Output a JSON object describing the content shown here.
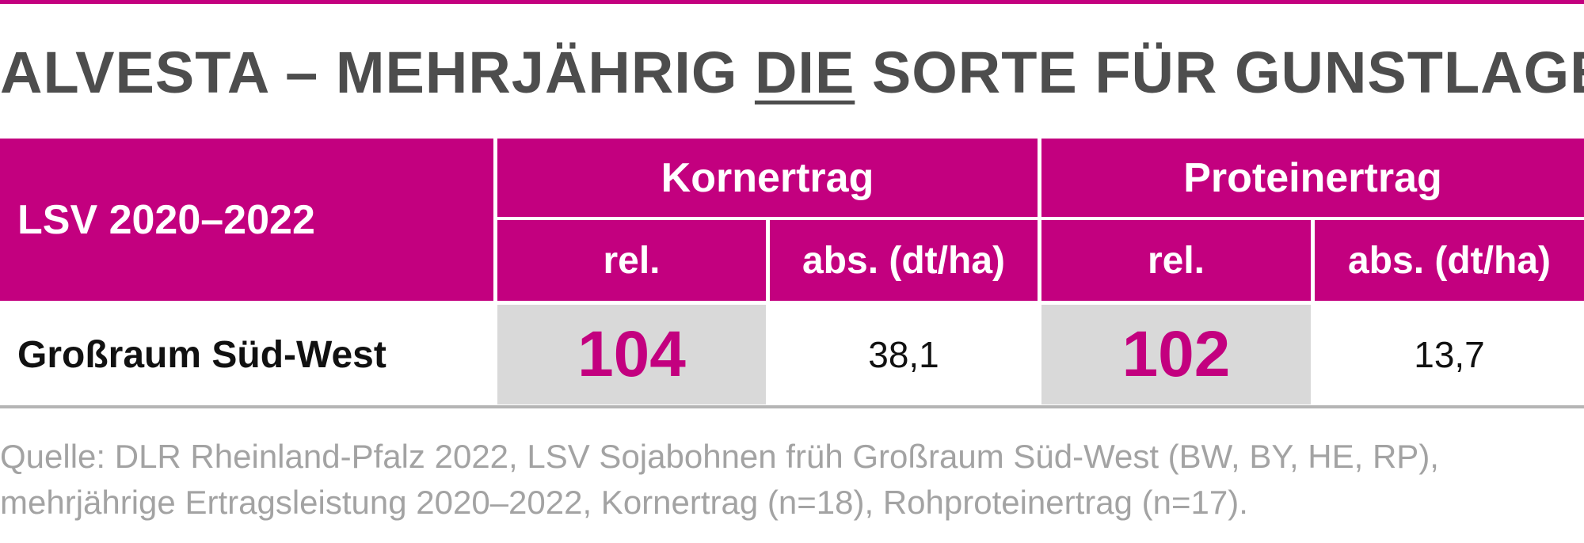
{
  "title": {
    "before": "ALVESTA – MEHRJÄHRIG ",
    "emphasis": "DIE",
    "after": " SORTE FÜR GUNSTLAGEN"
  },
  "table": {
    "row_header": "LSV 2020–2022",
    "groups": [
      {
        "label": "Kornertrag",
        "sub": [
          "rel.",
          "abs. (dt/ha)"
        ]
      },
      {
        "label": "Proteinertrag",
        "sub": [
          "rel.",
          "abs. (dt/ha)"
        ]
      }
    ],
    "rows": [
      {
        "label": "Großraum Süd-West",
        "kornertrag_rel": "104",
        "kornertrag_abs": "38,1",
        "proteinertrag_rel": "102",
        "proteinertrag_abs": "13,7"
      }
    ]
  },
  "source": {
    "line1": "Quelle: DLR Rheinland-Pfalz 2022, LSV Sojabohnen früh Großraum Süd-West (BW, BY, HE, RP),",
    "line2": "mehrjährige Ertragsleistung 2020–2022, Kornertrag (n=18), Rohproteinertrag (n=17)."
  },
  "colors": {
    "accent": "#c3007f",
    "title": "#4d4d4d",
    "highlight_bg": "#d9d9d9",
    "source_text": "#a3a3a3"
  }
}
